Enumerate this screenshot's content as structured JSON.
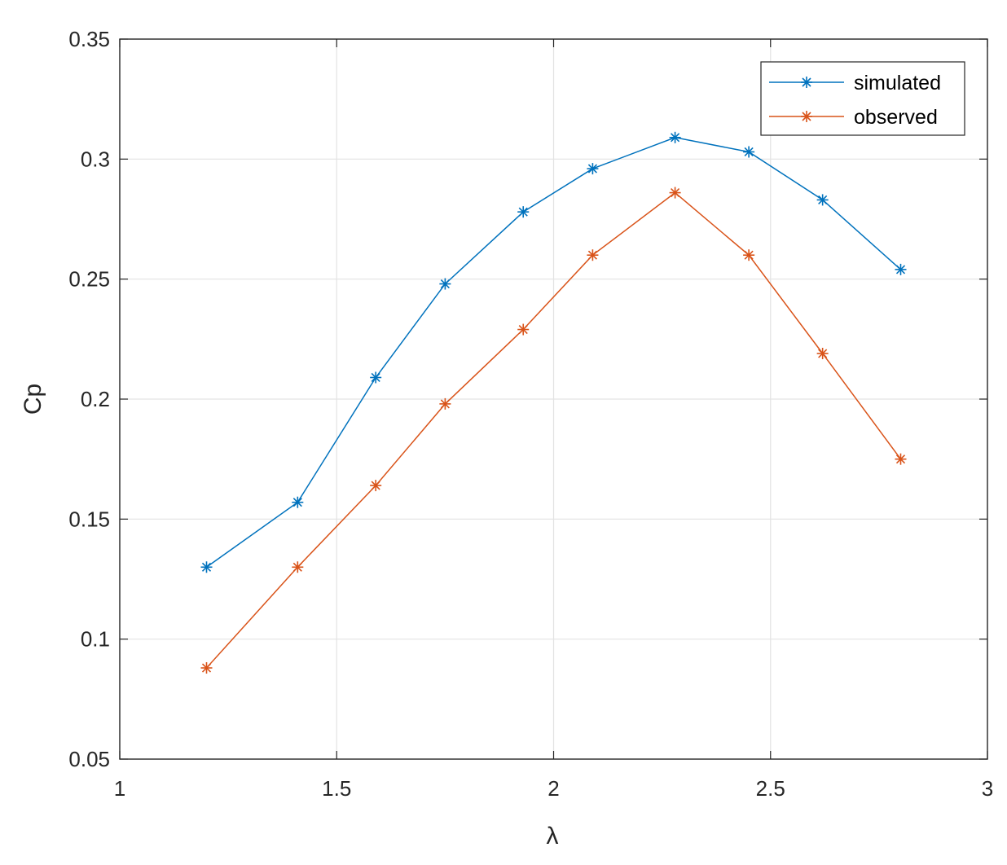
{
  "chart_data": {
    "type": "line",
    "xlabel": "λ",
    "ylabel": "Cp",
    "xlim": [
      1,
      3
    ],
    "ylim": [
      0.05,
      0.35
    ],
    "xticks": [
      "1",
      "1.5",
      "2",
      "2.5",
      "3"
    ],
    "yticks": [
      "0.05",
      "0.1",
      "0.15",
      "0.2",
      "0.25",
      "0.3",
      "0.35"
    ],
    "grid": true,
    "legend_position": "top-right",
    "marker": "asterisk",
    "series": [
      {
        "name": "simulated",
        "color": "#0072BD",
        "x": [
          1.2,
          1.41,
          1.59,
          1.75,
          1.93,
          2.09,
          2.28,
          2.45,
          2.62,
          2.8
        ],
        "y": [
          0.13,
          0.157,
          0.209,
          0.248,
          0.278,
          0.296,
          0.309,
          0.303,
          0.283,
          0.254
        ]
      },
      {
        "name": "observed",
        "color": "#D95319",
        "x": [
          1.2,
          1.41,
          1.59,
          1.75,
          1.93,
          2.09,
          2.28,
          2.45,
          2.62,
          2.8
        ],
        "y": [
          0.088,
          0.13,
          0.164,
          0.198,
          0.229,
          0.26,
          0.286,
          0.26,
          0.219,
          0.175
        ]
      }
    ]
  }
}
